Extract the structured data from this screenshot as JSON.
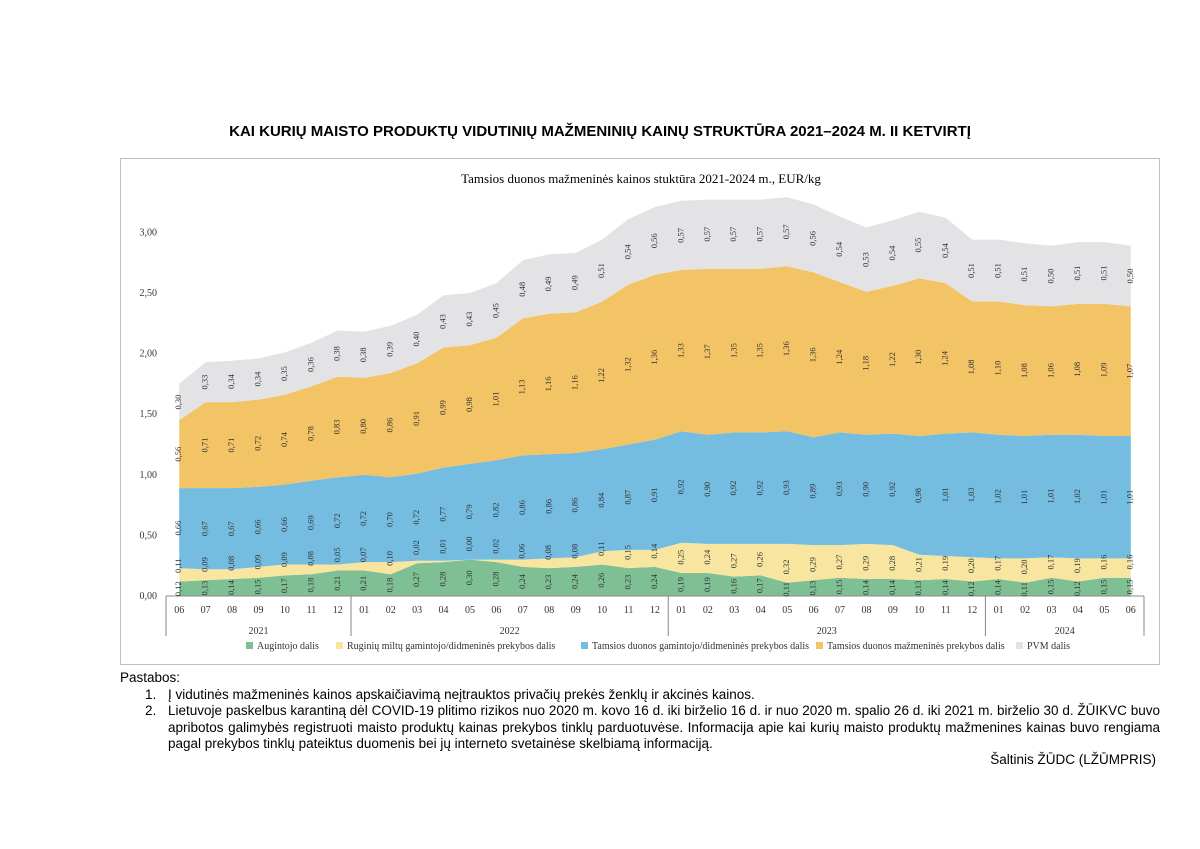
{
  "page": {
    "title": "KAI KURIŲ MAISTO PRODUKTŲ VIDUTINIŲ MAŽMENINIŲ KAINŲ STRUKTŪRA 2021–2024 M. II KETVIRTĮ",
    "notes_header": "Pastabos:",
    "notes": [
      "Į vidutinės mažmeninės kainos apskaičiavimą neįtrauktos privačių prekės ženklų ir akcinės kainos.",
      "Lietuvoje paskelbus karantiną dėl COVID-19 plitimo rizikos nuo 2020 m. kovo 16 d. iki birželio 16 d. ir nuo 2020 m. spalio 26 d. iki 2021 m. birželio 30 d. ŽŪIKVC buvo apribotos galimybės registruoti maisto produktų kainas prekybos tinklų parduotuvėse. Informacija apie kai kurių maisto produktų mažmenines kainas buvo rengiama pagal prekybos tinklų pateiktus duomenis bei jų interneto svetainėse skelbiamą informaciją."
    ],
    "source": "Šaltinis ŽŪDC (LŽŪMPRIS)"
  },
  "chart_data": {
    "type": "area",
    "stacked": true,
    "title": "Tamsios duonos mažmeninės  kainos stuktūra 2021-2024 m., EUR/kg",
    "xlabel": "",
    "ylabel": "",
    "ylim": [
      0,
      3.3
    ],
    "yticks": [
      "0,00",
      "0,50",
      "1,00",
      "1,50",
      "2,00",
      "2,50",
      "3,00"
    ],
    "grid": false,
    "legend_position": "bottom",
    "categories": [
      "06",
      "07",
      "08",
      "09",
      "10",
      "11",
      "12",
      "01",
      "02",
      "03",
      "04",
      "05",
      "06",
      "07",
      "08",
      "09",
      "10",
      "11",
      "12",
      "01",
      "02",
      "03",
      "04",
      "05",
      "06",
      "07",
      "08",
      "09",
      "10",
      "11",
      "12",
      "01",
      "02",
      "03",
      "04",
      "05",
      "06"
    ],
    "years": [
      {
        "label": "2021",
        "start": 0,
        "end": 6
      },
      {
        "label": "2022",
        "start": 7,
        "end": 18
      },
      {
        "label": "2023",
        "start": 19,
        "end": 30
      },
      {
        "label": "2024",
        "start": 31,
        "end": 36
      }
    ],
    "series": [
      {
        "name": "Augintojo dalis",
        "color": "#7fbf94",
        "values": [
          0.12,
          0.13,
          0.14,
          0.15,
          0.17,
          0.18,
          0.21,
          0.21,
          0.18,
          0.27,
          0.28,
          0.3,
          0.28,
          0.24,
          0.23,
          0.24,
          0.26,
          0.23,
          0.24,
          0.19,
          0.19,
          0.16,
          0.17,
          0.11,
          0.13,
          0.15,
          0.14,
          0.14,
          0.13,
          0.14,
          0.12,
          0.14,
          0.11,
          0.15,
          0.12,
          0.15,
          0.15
        ],
        "labels": [
          "0,12",
          "0,13",
          "0,14",
          "0,15",
          "0,17",
          "0,18",
          "0,21",
          "0,21",
          "0,18",
          "0,27",
          "0,28",
          "0,30",
          "0,28",
          "0,24",
          "0,23",
          "0,24",
          "0,26",
          "0,23",
          "0,24",
          "0,19",
          "0,19",
          "0,16",
          "0,17",
          "0,11",
          "0,13",
          "0,15",
          "0,14",
          "0,14",
          "0,13",
          "0,14",
          "0,12",
          "0,14",
          "0,11",
          "0,15",
          "0,12",
          "0,15",
          "0,15"
        ]
      },
      {
        "name": "Ruginių miltų gamintojo/didmeninės  prekybos dalis",
        "color": "#f8e6a0",
        "values": [
          0.11,
          0.09,
          0.08,
          0.09,
          0.09,
          0.08,
          0.05,
          0.07,
          0.1,
          0.02,
          0.01,
          0.0,
          0.02,
          0.06,
          0.08,
          0.08,
          0.11,
          0.15,
          0.14,
          0.25,
          0.24,
          0.27,
          0.26,
          0.32,
          0.29,
          0.27,
          0.29,
          0.28,
          0.21,
          0.19,
          0.2,
          0.17,
          0.2,
          0.17,
          0.19,
          0.16,
          0.16
        ],
        "labels": [
          "0,11",
          "0,09",
          "0,08",
          "0,09",
          "0,09",
          "0,08",
          "0,05",
          "0,07",
          "0,10",
          "0,02",
          "0,01",
          "0,00",
          "0,02",
          "0,06",
          "0,08",
          "0,08",
          "0,11",
          "0,15",
          "0,14",
          "0,25",
          "0,24",
          "0,27",
          "0,26",
          "0,32",
          "0,29",
          "0,27",
          "0,29",
          "0,28",
          "0,21",
          "0,19",
          "0,20",
          "0,17",
          "0,20",
          "0,17",
          "0,19",
          "0,16",
          "0,16"
        ]
      },
      {
        "name": "Tamsios duonos gamintojo/didmeninės prekybos dalis",
        "color": "#74bde0",
        "values": [
          0.66,
          0.67,
          0.67,
          0.66,
          0.66,
          0.69,
          0.72,
          0.72,
          0.7,
          0.72,
          0.77,
          0.79,
          0.82,
          0.86,
          0.86,
          0.86,
          0.84,
          0.87,
          0.91,
          0.92,
          0.9,
          0.92,
          0.92,
          0.93,
          0.89,
          0.93,
          0.9,
          0.92,
          0.98,
          1.01,
          1.03,
          1.02,
          1.01,
          1.01,
          1.02,
          1.01,
          1.01
        ],
        "labels": [
          "0,66",
          "0,67",
          "0,67",
          "0,66",
          "0,66",
          "0,69",
          "0,72",
          "0,72",
          "0,70",
          "0,72",
          "0,77",
          "0,79",
          "0,82",
          "0,86",
          "0,86",
          "0,86",
          "0,84",
          "0,87",
          "0,91",
          "0,92",
          "0,90",
          "0,92",
          "0,92",
          "0,93",
          "0,89",
          "0,93",
          "0,90",
          "0,92",
          "0,98",
          "1,01",
          "1,03",
          "1,02",
          "1,01",
          "1,01",
          "1,02",
          "1,01",
          "1,01"
        ]
      },
      {
        "name": "Tamsios duonos mažmeninės prekybos dalis",
        "color": "#f3c465",
        "values": [
          0.56,
          0.71,
          0.71,
          0.72,
          0.74,
          0.78,
          0.83,
          0.8,
          0.86,
          0.91,
          0.99,
          0.98,
          1.01,
          1.13,
          1.16,
          1.16,
          1.22,
          1.32,
          1.36,
          1.33,
          1.37,
          1.35,
          1.35,
          1.36,
          1.36,
          1.24,
          1.18,
          1.22,
          1.3,
          1.24,
          1.08,
          1.1,
          1.08,
          1.06,
          1.08,
          1.09,
          1.07
        ],
        "labels": [
          "0,56",
          "0,71",
          "0,71",
          "0,72",
          "0,74",
          "0,78",
          "0,83",
          "0,80",
          "0,86",
          "0,91",
          "0,99",
          "0,98",
          "1,01",
          "1,13",
          "1,16",
          "1,16",
          "1,22",
          "1,32",
          "1,36",
          "1,33",
          "1,37",
          "1,35",
          "1,35",
          "1,36",
          "1,36",
          "1,24",
          "1,18",
          "1,22",
          "1,30",
          "1,24",
          "1,08",
          "1,10",
          "1,08",
          "1,06",
          "1,08",
          "1,09",
          "1,07"
        ]
      },
      {
        "name": "PVM dalis",
        "color": "#e3e3e6",
        "values": [
          0.3,
          0.33,
          0.34,
          0.34,
          0.35,
          0.36,
          0.38,
          0.38,
          0.39,
          0.4,
          0.43,
          0.43,
          0.45,
          0.48,
          0.49,
          0.49,
          0.51,
          0.54,
          0.56,
          0.57,
          0.57,
          0.57,
          0.57,
          0.57,
          0.56,
          0.54,
          0.53,
          0.54,
          0.55,
          0.54,
          0.51,
          0.51,
          0.51,
          0.5,
          0.51,
          0.51,
          0.5
        ],
        "labels": [
          "0,30",
          "0,33",
          "0,34",
          "0,34",
          "0,35",
          "0,36",
          "0,38",
          "0,38",
          "0,39",
          "0,40",
          "0,43",
          "0,43",
          "0,45",
          "0,48",
          "0,49",
          "0,49",
          "0,51",
          "0,54",
          "0,56",
          "0,57",
          "0,57",
          "0,57",
          "0,57",
          "0,57",
          "0,56",
          "0,54",
          "0,53",
          "0,54",
          "0,55",
          "0,54",
          "0,51",
          "0,51",
          "0,51",
          "0,50",
          "0,51",
          "0,51",
          "0,50"
        ]
      }
    ]
  }
}
